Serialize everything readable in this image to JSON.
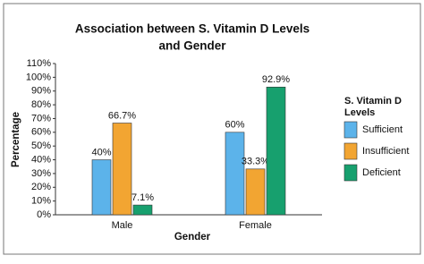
{
  "chart_data": {
    "type": "bar",
    "title": [
      "Association between S. Vitamin D Levels",
      "and Gender"
    ],
    "x_label": "Gender",
    "y_label": "Percentage",
    "legend_title": [
      "S. Vitamin D",
      "Levels"
    ],
    "categories": [
      "Male",
      "Female"
    ],
    "series": [
      {
        "name": "Sufficient",
        "color": "#5cb3ea",
        "values": [
          40,
          60
        ],
        "value_labels": [
          "40%",
          "60%"
        ]
      },
      {
        "name": "Insufficient",
        "color": "#f2a532",
        "values": [
          66.7,
          33.3
        ],
        "value_labels": [
          "66.7%",
          "33.3%"
        ]
      },
      {
        "name": "Deficient",
        "color": "#17a06e",
        "values": [
          7.1,
          92.9
        ],
        "value_labels": [
          "7.1%",
          "92.9%"
        ]
      }
    ],
    "ylim": [
      0,
      110
    ],
    "yticks": [
      {
        "value": 0,
        "label": "0%"
      },
      {
        "value": 10,
        "label": "10%"
      },
      {
        "value": 20,
        "label": "20%"
      },
      {
        "value": 30,
        "label": "30%"
      },
      {
        "value": 40,
        "label": "40%"
      },
      {
        "value": 50,
        "label": "50%"
      },
      {
        "value": 60,
        "label": "60%"
      },
      {
        "value": 70,
        "label": "70%"
      },
      {
        "value": 80,
        "label": "80%"
      },
      {
        "value": 90,
        "label": "90%"
      },
      {
        "value": 100,
        "label": "100%"
      },
      {
        "value": 110,
        "label": "110%"
      }
    ],
    "grid": false,
    "legend": "right"
  }
}
